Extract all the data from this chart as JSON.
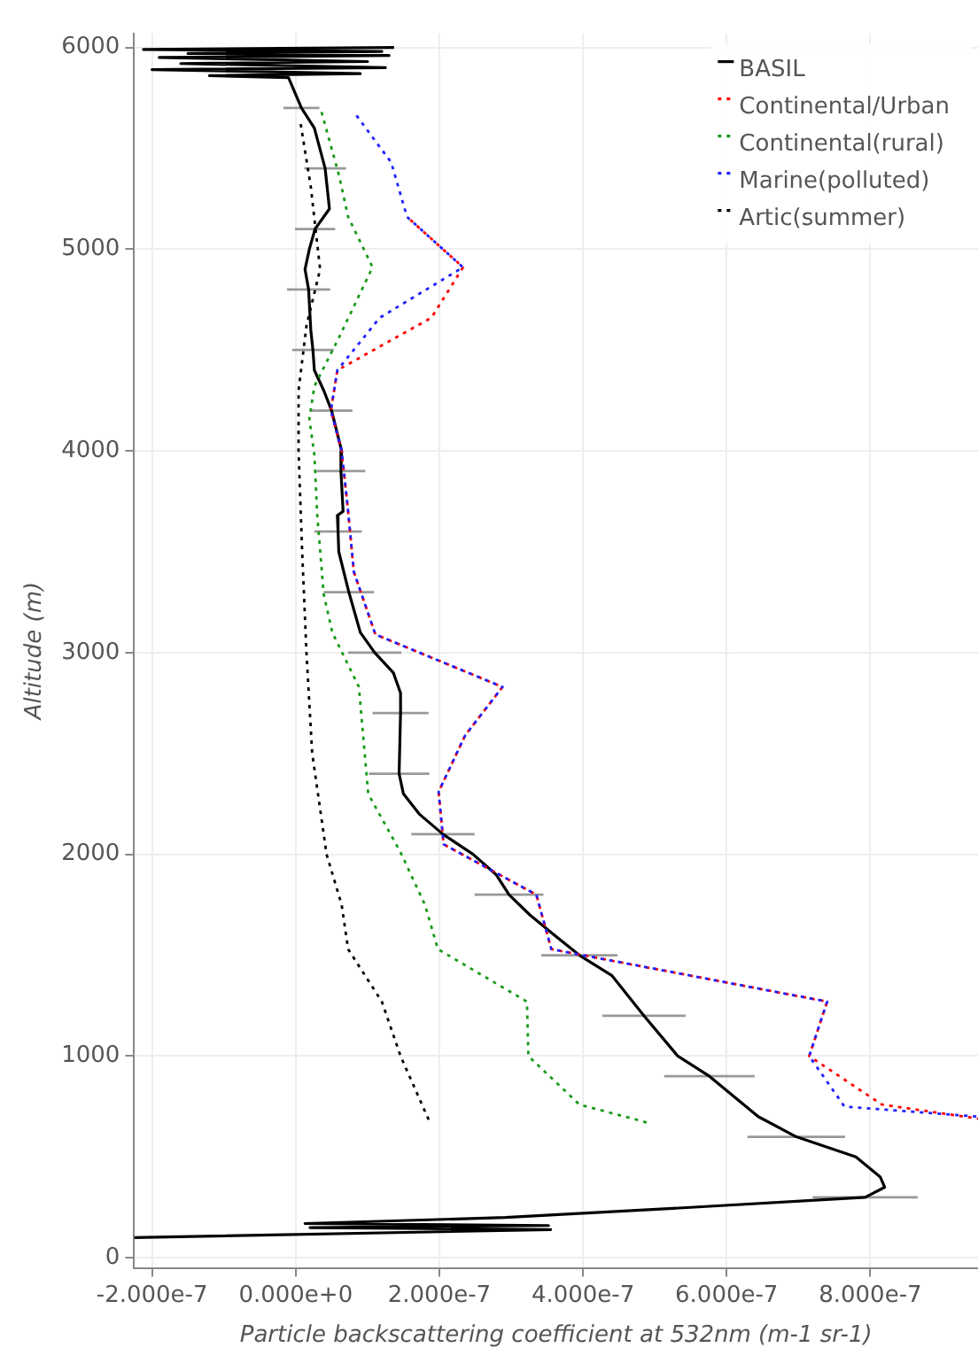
{
  "chart_data": {
    "type": "line",
    "xlabel": "Particle backscattering coefficient at 532nm (m-1 sr-1)",
    "ylabel": "Altitude (m)",
    "xlim": [
      -2.25e-07,
      9.5e-07
    ],
    "ylim": [
      -50,
      6070
    ],
    "xticks": [
      {
        "value": -2e-07,
        "label": "-2.000e-7"
      },
      {
        "value": 0,
        "label": "0.000e+0"
      },
      {
        "value": 2e-07,
        "label": "2.000e-7"
      },
      {
        "value": 4e-07,
        "label": "4.000e-7"
      },
      {
        "value": 6e-07,
        "label": "6.000e-7"
      },
      {
        "value": 8e-07,
        "label": "8.000e-7"
      }
    ],
    "yticks": [
      0,
      1000,
      2000,
      3000,
      4000,
      5000,
      6000
    ],
    "grid": true,
    "legend": "top right",
    "marker": "none",
    "series": [
      {
        "name": "BASIL",
        "color": "#000000",
        "line_style": "solid",
        "x": [
          1.37e-07,
          -2.12e-07,
          1.2e-07,
          -1.5e-07,
          1.3e-07,
          -1.9e-07,
          1e-07,
          -1.6e-07,
          1.25e-07,
          -2e-07,
          9e-08,
          -1.2e-07,
          -1e-08,
          8e-09,
          2.6e-08,
          4.1e-08,
          4.7e-08,
          2.7e-08,
          1.9e-08,
          1.3e-08,
          1.8e-08,
          2.1e-08,
          2.4e-08,
          2.6e-08,
          3.9e-08,
          5e-08,
          6.4e-08,
          6.3e-08,
          6.6e-08,
          5.8e-08,
          5.9e-08,
          6e-08,
          7.4e-08,
          9e-08,
          1.1e-07,
          1.36e-07,
          1.46e-07,
          1.46e-07,
          1.44e-07,
          1.5e-07,
          1.72e-07,
          2.05e-07,
          2.47e-07,
          2.79e-07,
          2.97e-07,
          3.26e-07,
          3.6e-07,
          3.95e-07,
          4.4e-07,
          4.85e-07,
          5.32e-07,
          5.76e-07,
          6.44e-07,
          6.97e-07,
          7.8e-07,
          8.14e-07,
          8.2e-07,
          7.93e-07,
          5.5e-07,
          2.92e-07,
          1.3e-08,
          3.52e-07,
          2e-08,
          3.55e-07,
          -2.25e-07
        ],
        "values": [
          6000,
          5990,
          5980,
          5970,
          5960,
          5950,
          5930,
          5920,
          5900,
          5890,
          5870,
          5860,
          5850,
          5700,
          5600,
          5400,
          5200,
          5100,
          5000,
          4900,
          4800,
          4600,
          4500,
          4400,
          4300,
          4200,
          4000,
          3900,
          3700,
          3680,
          3600,
          3500,
          3300,
          3100,
          3000,
          2900,
          2800,
          2700,
          2400,
          2300,
          2200,
          2100,
          2000,
          1900,
          1800,
          1700,
          1600,
          1500,
          1400,
          1200,
          1000,
          900,
          700,
          600,
          500,
          400,
          350,
          300,
          250,
          200,
          170,
          160,
          150,
          140,
          100
        ],
        "xerrors": [
          null,
          null,
          null,
          null,
          null,
          null,
          null,
          null,
          null,
          null,
          null,
          null,
          null,
          2.5e-08,
          null,
          2.9e-08,
          null,
          2.8e-08,
          null,
          null,
          3e-08,
          null,
          2.9e-08,
          null,
          null,
          2.9e-08,
          null,
          3.4e-08,
          null,
          null,
          3.3e-08,
          null,
          3.5e-08,
          null,
          3.7e-08,
          null,
          null,
          3.9e-08,
          4.2e-08,
          null,
          null,
          4.4e-08,
          null,
          null,
          4.8e-08,
          null,
          null,
          5.3e-08,
          null,
          5.8e-08,
          null,
          6.3e-08,
          null,
          6.8e-08,
          null,
          null,
          null,
          7.3e-08,
          null,
          null,
          null,
          null,
          null,
          null,
          null
        ]
      },
      {
        "name": "Continental/Urban",
        "color": "#ff0000",
        "line_style": "dotted",
        "x": [
          1.55e-07,
          2.33e-07,
          1.89e-07,
          5.8e-08,
          4.9e-08,
          6.4e-08,
          7.3e-08,
          8.1e-08,
          1.11e-07,
          2.88e-07,
          2.36e-07,
          1.99e-07,
          2.06e-07,
          3.35e-07,
          3.56e-07,
          7.4e-07,
          7.15e-07,
          8.16e-07,
          9.5e-07
        ],
        "values": [
          5160,
          4910,
          4660,
          4400,
          4200,
          4000,
          3700,
          3400,
          3090,
          2830,
          2590,
          2310,
          2050,
          1800,
          1530,
          1270,
          1000,
          760,
          690
        ]
      },
      {
        "name": "Continental(rural)",
        "color": "#1a9a1a",
        "line_style": "dotted",
        "x": [
          3.6e-08,
          6e-08,
          7.3e-08,
          1.07e-07,
          6e-08,
          2.6e-08,
          1.9e-08,
          2.6e-08,
          3e-08,
          3.9e-08,
          5.1e-08,
          8.8e-08,
          1.01e-07,
          1.46e-07,
          1.8e-07,
          1.98e-07,
          3.22e-07,
          3.24e-07,
          3.95e-07,
          4.9e-07
        ],
        "values": [
          5680,
          5370,
          5160,
          4910,
          4560,
          4320,
          4160,
          3980,
          3680,
          3290,
          3100,
          2830,
          2300,
          2010,
          1750,
          1530,
          1270,
          1000,
          760,
          670
        ]
      },
      {
        "name": "Marine(polluted)",
        "color": "#2020ff",
        "line_style": "dotted",
        "x": [
          8.1e-08,
          1.33e-07,
          1.55e-07,
          2.33e-07,
          1.17e-07,
          5.8e-08,
          4.9e-08,
          6.4e-08,
          7.3e-08,
          8.1e-08,
          1.11e-07,
          2.88e-07,
          2.36e-07,
          1.99e-07,
          2.06e-07,
          3.35e-07,
          3.56e-07,
          7.4e-07,
          7.15e-07,
          7.64e-07,
          9.5e-07
        ],
        "values": [
          5680,
          5430,
          5160,
          4910,
          4660,
          4400,
          4200,
          4000,
          3700,
          3400,
          3090,
          2830,
          2590,
          2310,
          2050,
          1800,
          1530,
          1270,
          1000,
          750,
          700
        ]
      },
      {
        "name": "Artic(summer)",
        "color": "#000000",
        "line_style": "dotted",
        "x": [
          7e-09,
          2.1e-08,
          3.4e-08,
          1.5e-08,
          4e-09,
          4e-09,
          9e-09,
          1.5e-08,
          2.3e-08,
          4.3e-08,
          6.4e-08,
          7.3e-08,
          1.2e-07,
          1.46e-07,
          1.87e-07
        ],
        "values": [
          5620,
          5310,
          4900,
          4620,
          4300,
          4000,
          3500,
          3000,
          2500,
          2000,
          1750,
          1530,
          1270,
          1000,
          670
        ]
      }
    ]
  }
}
